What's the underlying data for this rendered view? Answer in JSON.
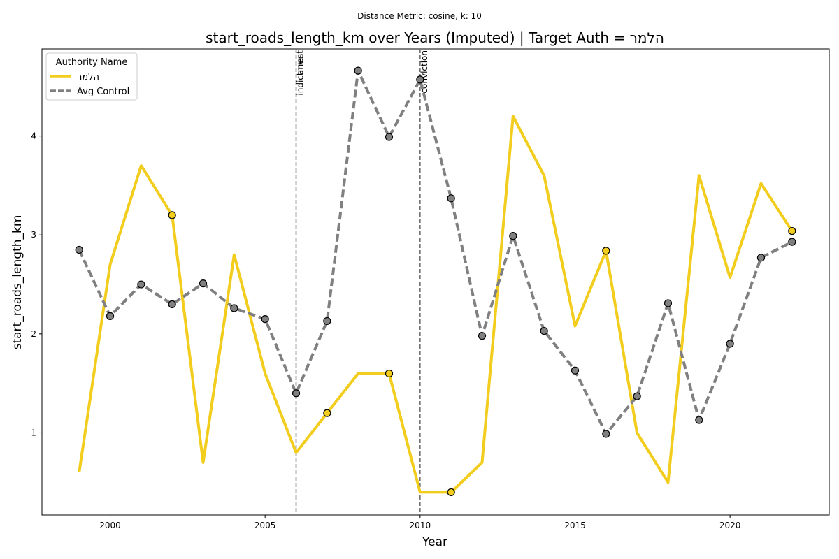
{
  "chart_data": {
    "type": "line",
    "suptitle": "Distance Metric: cosine, k: 10",
    "title": "start_roads_length_km over Years (Imputed) | Target Auth = הלמר",
    "xlabel": "Year",
    "ylabel": "start_roads_length_km",
    "xlim": [
      1997.8,
      2023.2
    ],
    "ylim": [
      0.17,
      4.88
    ],
    "x_ticks": [
      2000,
      2005,
      2010,
      2015,
      2020
    ],
    "y_ticks": [
      1,
      2,
      3,
      4
    ],
    "grid": false,
    "legend": {
      "title": "Authority Name",
      "placement": "top-left"
    },
    "series": [
      {
        "name": "הלמר",
        "style": "solid",
        "color": "#f2cd1d",
        "x": [
          1999,
          2000,
          2001,
          2002,
          2003,
          2004,
          2005,
          2006,
          2007,
          2008,
          2009,
          2010,
          2011,
          2012,
          2013,
          2014,
          2015,
          2016,
          2017,
          2018,
          2019,
          2020,
          2021,
          2022
        ],
        "y": [
          0.6,
          2.7,
          3.7,
          3.2,
          0.7,
          2.8,
          1.6,
          0.8,
          1.2,
          1.6,
          1.6,
          0.4,
          0.4,
          0.7,
          4.2,
          3.6,
          2.08,
          2.84,
          1.0,
          0.5,
          3.6,
          2.57,
          3.52,
          3.04
        ],
        "markers_x": [
          2002,
          2007,
          2009,
          2011,
          2016,
          2022
        ],
        "markers_y": [
          3.2,
          1.2,
          1.6,
          0.4,
          2.84,
          3.04
        ]
      },
      {
        "name": "Avg Control",
        "style": "dashed",
        "color": "#808080",
        "x": [
          1999,
          2000,
          2001,
          2002,
          2003,
          2004,
          2005,
          2006,
          2007,
          2008,
          2009,
          2010,
          2011,
          2012,
          2013,
          2014,
          2015,
          2016,
          2017,
          2018,
          2019,
          2020,
          2021,
          2022
        ],
        "y": [
          2.85,
          2.18,
          2.5,
          2.3,
          2.51,
          2.26,
          2.15,
          1.4,
          2.13,
          4.66,
          3.99,
          4.57,
          3.37,
          1.98,
          2.99,
          2.03,
          1.63,
          0.99,
          1.37,
          2.31,
          1.13,
          1.9,
          2.77,
          2.93
        ],
        "markers_x": [
          1999,
          2000,
          2001,
          2002,
          2003,
          2004,
          2005,
          2006,
          2007,
          2008,
          2009,
          2010,
          2011,
          2012,
          2013,
          2014,
          2015,
          2016,
          2017,
          2018,
          2019,
          2020,
          2021,
          2022
        ],
        "markers_y": [
          2.85,
          2.18,
          2.5,
          2.3,
          2.51,
          2.26,
          2.15,
          1.4,
          2.13,
          4.66,
          3.99,
          4.57,
          3.37,
          1.98,
          2.99,
          2.03,
          1.63,
          0.99,
          1.37,
          2.31,
          1.13,
          1.9,
          2.77,
          2.93
        ]
      }
    ],
    "events": [
      {
        "x": 2006,
        "labels": [
          "indictment",
          "arrest"
        ]
      },
      {
        "x": 2010,
        "labels": [
          "conviction"
        ]
      }
    ]
  }
}
